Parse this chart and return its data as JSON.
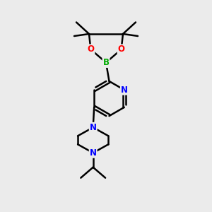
{
  "background_color": "#ebebeb",
  "bond_color": "#000000",
  "bond_width": 1.8,
  "atom_colors": {
    "C": "#000000",
    "N": "#0000ff",
    "O": "#ff0000",
    "B": "#00aa00"
  },
  "font_size": 8.5,
  "figsize": [
    3.0,
    3.0
  ],
  "dpi": 100
}
